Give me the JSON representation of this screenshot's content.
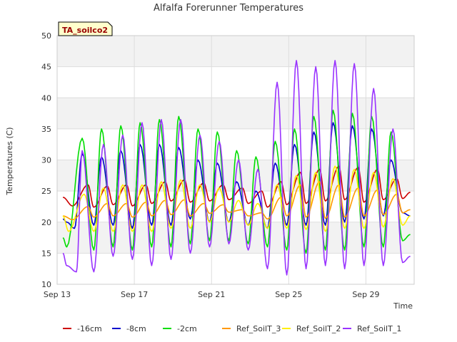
{
  "chart_data": {
    "type": "line",
    "title": "Alfalfa Forerunner Temperatures",
    "xlabel": "Time",
    "ylabel": "Temperatures (C)",
    "annotation": "TA_soilco2",
    "x_range": [
      "Sep 13",
      "Sep 31"
    ],
    "x_ticks": [
      {
        "day": 13,
        "label": "Sep 13"
      },
      {
        "day": 17,
        "label": "Sep 17"
      },
      {
        "day": 21,
        "label": "Sep 21"
      },
      {
        "day": 25,
        "label": "Sep 25"
      },
      {
        "day": 29,
        "label": "Sep 29"
      }
    ],
    "ylim": [
      10,
      50
    ],
    "y_ticks": [
      10,
      15,
      20,
      25,
      30,
      35,
      40,
      45,
      50
    ],
    "grid": true,
    "legend_placement": "bottom",
    "x_unit": "day of September",
    "series": [
      {
        "name": "-16cm",
        "color": "#cc0000",
        "x": [
          13.3,
          13.8,
          14.6,
          14.9,
          15.6,
          15.9,
          16.6,
          16.9,
          17.6,
          17.9,
          18.6,
          18.9,
          19.6,
          19.9,
          20.6,
          20.9,
          21.6,
          21.9,
          22.6,
          22.9,
          23.6,
          23.9,
          24.6,
          24.9,
          25.6,
          25.9,
          26.6,
          26.9,
          27.6,
          27.9,
          28.6,
          28.9,
          29.6,
          29.9,
          30.6,
          30.9,
          31.3
        ],
        "y": [
          24.0,
          22.6,
          26.0,
          22.4,
          25.8,
          22.8,
          26.0,
          22.6,
          26.0,
          23.0,
          26.5,
          23.4,
          26.8,
          23.2,
          26.3,
          23.4,
          26.0,
          23.6,
          25.5,
          23.0,
          25.0,
          22.4,
          26.5,
          22.8,
          28.0,
          23.0,
          28.5,
          23.4,
          29.0,
          23.6,
          28.8,
          23.2,
          28.5,
          23.6,
          27.0,
          23.8,
          24.8
        ]
      },
      {
        "name": "-8cm",
        "color": "#0000cc",
        "x": [
          13.3,
          13.5,
          13.9,
          14.3,
          14.9,
          15.3,
          15.9,
          16.3,
          16.9,
          17.3,
          17.9,
          18.3,
          18.9,
          19.3,
          19.9,
          20.3,
          20.9,
          21.3,
          21.9,
          22.3,
          22.9,
          23.3,
          23.9,
          24.3,
          24.9,
          25.3,
          25.9,
          26.3,
          26.9,
          27.3,
          27.9,
          28.3,
          28.9,
          29.3,
          29.9,
          30.3,
          30.9,
          31.3
        ],
        "y": [
          20.5,
          20.0,
          19.0,
          31.0,
          19.5,
          30.5,
          19.5,
          31.5,
          19.0,
          32.5,
          19.5,
          32.5,
          19.5,
          32.0,
          20.5,
          30.0,
          20.0,
          29.5,
          20.0,
          26.5,
          19.5,
          25.0,
          19.0,
          29.5,
          19.5,
          32.5,
          19.5,
          34.5,
          19.5,
          36.0,
          20.0,
          35.5,
          20.5,
          35.0,
          21.0,
          30.0,
          21.5,
          21.0
        ]
      },
      {
        "name": "-2cm",
        "color": "#00dd00",
        "x": [
          13.3,
          13.5,
          14.3,
          14.9,
          15.3,
          15.9,
          16.3,
          16.9,
          17.3,
          17.9,
          18.3,
          18.9,
          19.3,
          19.9,
          20.3,
          20.9,
          21.3,
          21.9,
          22.3,
          22.9,
          23.3,
          23.9,
          24.3,
          24.9,
          25.3,
          25.9,
          26.3,
          26.9,
          27.3,
          27.9,
          28.3,
          28.9,
          29.3,
          29.9,
          30.3,
          30.9,
          31.3
        ],
        "y": [
          17.5,
          16.0,
          33.5,
          15.5,
          35.0,
          16.0,
          35.5,
          15.5,
          36.0,
          16.0,
          36.5,
          16.0,
          37.0,
          16.5,
          35.0,
          17.0,
          34.5,
          17.0,
          31.5,
          16.5,
          30.5,
          16.0,
          33.0,
          15.5,
          35.0,
          15.0,
          37.0,
          15.5,
          38.0,
          15.5,
          37.5,
          16.0,
          37.0,
          16.0,
          34.5,
          17.0,
          18.0
        ]
      },
      {
        "name": "Ref_SoilT_3",
        "color": "#ff9900",
        "x": [
          13.3,
          13.8,
          14.6,
          14.9,
          15.6,
          15.9,
          16.6,
          16.9,
          17.6,
          17.9,
          18.6,
          18.9,
          19.6,
          19.9,
          20.6,
          20.9,
          21.6,
          21.9,
          22.6,
          22.9,
          23.6,
          23.9,
          24.6,
          24.9,
          25.6,
          25.9,
          26.6,
          26.9,
          27.6,
          27.9,
          28.6,
          28.9,
          29.6,
          29.9,
          30.6,
          30.9,
          31.3
        ],
        "y": [
          21.0,
          20.4,
          22.5,
          20.8,
          23.0,
          21.0,
          23.0,
          20.8,
          23.2,
          21.0,
          23.5,
          21.2,
          23.6,
          21.0,
          23.0,
          21.4,
          22.8,
          21.6,
          22.0,
          21.0,
          21.5,
          20.5,
          24.0,
          21.0,
          26.0,
          20.8,
          26.5,
          20.6,
          26.0,
          20.8,
          25.5,
          21.0,
          25.2,
          21.2,
          24.5,
          21.5,
          22.0
        ]
      },
      {
        "name": "Ref_SoilT_2",
        "color": "#ffee00",
        "x": [
          13.3,
          13.6,
          14.4,
          14.9,
          15.4,
          15.9,
          16.4,
          16.9,
          17.4,
          17.9,
          18.4,
          18.9,
          19.4,
          19.9,
          20.4,
          20.9,
          21.4,
          21.9,
          22.4,
          22.9,
          23.4,
          23.9,
          24.4,
          24.9,
          25.4,
          25.9,
          26.4,
          26.9,
          27.4,
          27.9,
          28.4,
          28.9,
          29.4,
          29.9,
          30.4,
          30.9,
          31.3
        ],
        "y": [
          21.0,
          18.5,
          24.5,
          18.5,
          25.5,
          18.5,
          26.0,
          18.5,
          26.0,
          18.5,
          26.5,
          19.0,
          26.8,
          19.0,
          26.0,
          20.0,
          25.5,
          20.0,
          23.5,
          19.5,
          23.0,
          19.0,
          26.0,
          19.0,
          27.5,
          18.8,
          28.0,
          18.5,
          29.0,
          19.0,
          28.5,
          19.0,
          28.0,
          19.2,
          27.0,
          19.5,
          21.0
        ]
      },
      {
        "name": "Ref_SoilT_1",
        "color": "#9933ff",
        "x": [
          13.3,
          13.5,
          14.0,
          14.3,
          14.9,
          15.4,
          15.9,
          16.4,
          16.9,
          17.4,
          17.9,
          18.4,
          18.9,
          19.4,
          19.9,
          20.4,
          20.9,
          21.4,
          21.9,
          22.4,
          22.9,
          23.4,
          23.9,
          24.4,
          24.9,
          25.4,
          25.9,
          26.4,
          26.9,
          27.4,
          27.9,
          28.4,
          28.9,
          29.4,
          29.9,
          30.4,
          30.9,
          31.3
        ],
        "y": [
          15.0,
          13.0,
          12.0,
          31.5,
          12.0,
          32.5,
          14.5,
          34.0,
          14.0,
          36.0,
          13.0,
          36.5,
          14.0,
          36.5,
          15.0,
          34.0,
          16.0,
          33.0,
          16.5,
          30.0,
          15.5,
          28.5,
          12.5,
          42.5,
          11.5,
          46.0,
          12.5,
          45.0,
          13.0,
          46.0,
          12.5,
          45.5,
          13.0,
          41.5,
          13.0,
          35.0,
          13.5,
          14.5
        ]
      }
    ]
  }
}
